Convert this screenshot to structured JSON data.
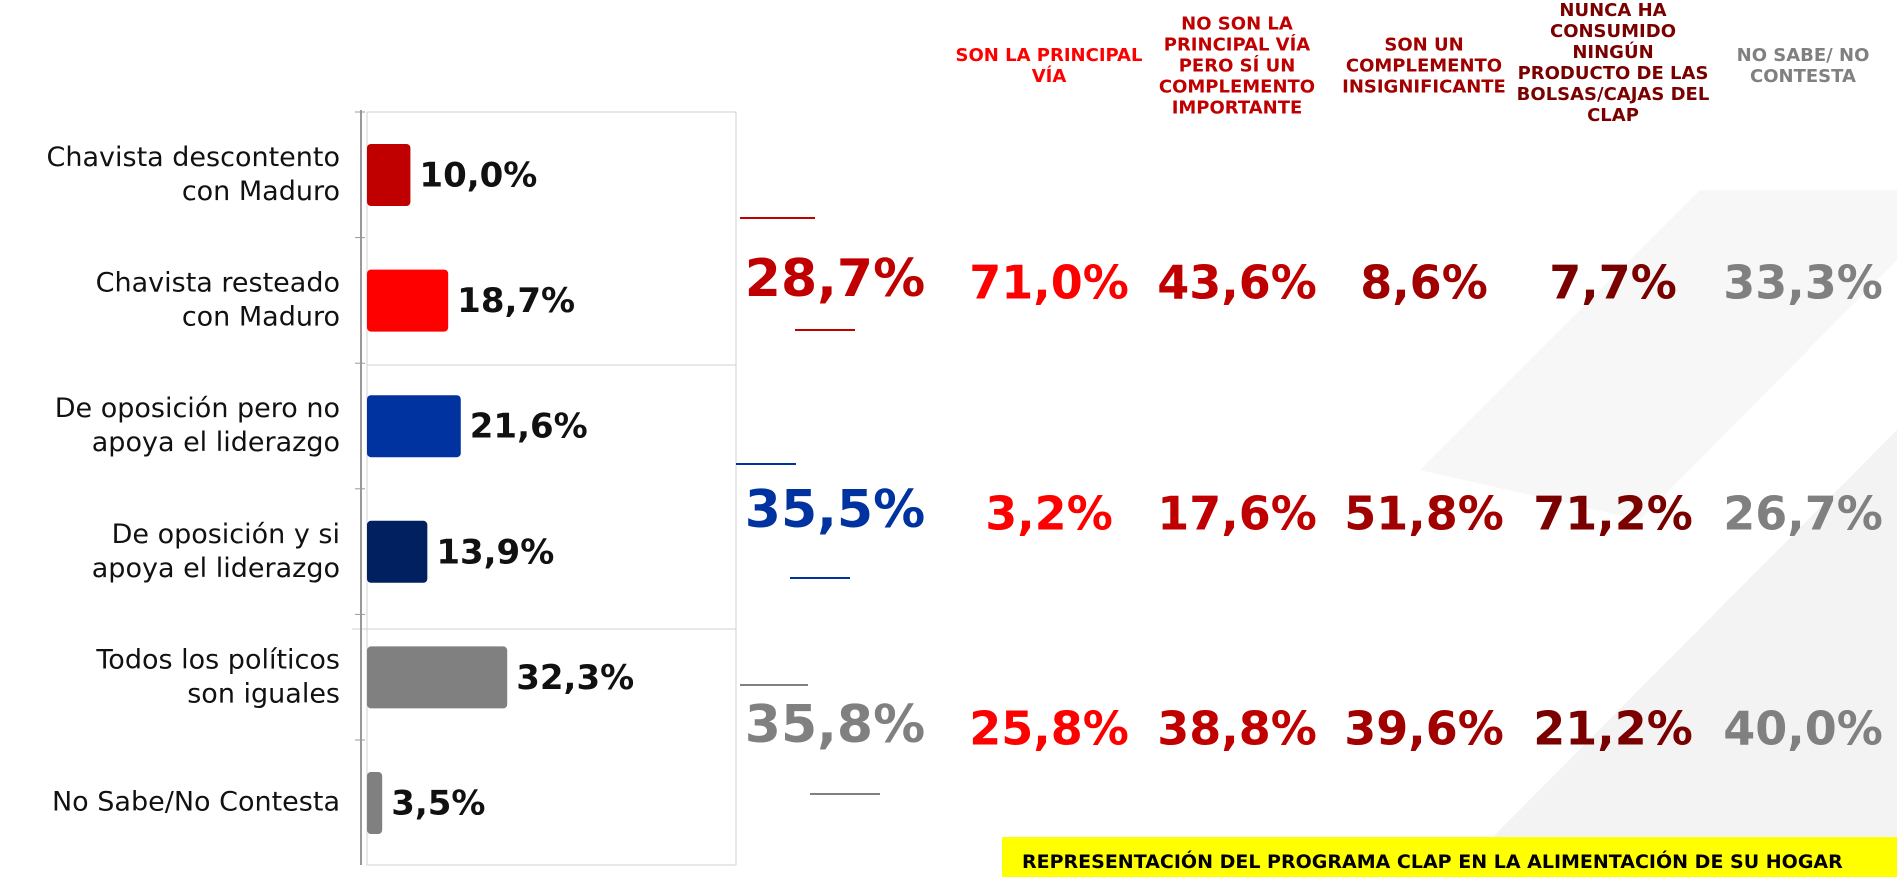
{
  "chart_data": {
    "type": "barh",
    "categories": [
      "Chavista descontento con Maduro",
      "Chavista resteado con Maduro",
      "De oposición pero no apoya el liderazgo",
      "De oposición y si apoya el liderazgo",
      "Todos los políticos son iguales",
      "No Sabe/No Contesta"
    ],
    "values": [
      10.0,
      18.7,
      21.6,
      13.9,
      32.3,
      3.5
    ],
    "value_labels": [
      "10,0%",
      "18,7%",
      "21,6%",
      "13,9%",
      "32,3%",
      "3,5%"
    ],
    "colors": [
      "#c00000",
      "#ff0000",
      "#0033a0",
      "#002060",
      "#808080",
      "#808080"
    ],
    "xlim": [
      0,
      85
    ]
  },
  "table": {
    "columns": [
      "SON LA PRINCIPAL VÍA",
      "NO SON LA PRINCIPAL VÍA PERO SÍ UN COMPLEMENTO IMPORTANTE",
      "SON UN COMPLEMENTO INSIGNIFICANTE",
      "NUNCA HA CONSUMIDO NINGÚN PRODUCTO DE LAS BOLSAS/CAJAS DEL CLAP",
      "NO SABE/ NO CONTESTA"
    ],
    "column_colors": [
      "#ff0000",
      "#c00000",
      "#a00000",
      "#7a0000",
      "#808080"
    ],
    "rows": [
      {
        "total": "28,7%",
        "color": "#c00000",
        "cells": [
          "71,0%",
          "43,6%",
          "8,6%",
          "7,7%",
          "33,3%"
        ]
      },
      {
        "total": "35,5%",
        "color": "#0033a0",
        "cells": [
          "3,2%",
          "17,6%",
          "51,8%",
          "71,2%",
          "26,7%"
        ]
      },
      {
        "total": "35,8%",
        "color": "#808080",
        "cells": [
          "25,8%",
          "38,8%",
          "39,6%",
          "21,2%",
          "40,0%"
        ]
      }
    ]
  },
  "banner": "REPRESENTACIÓN DEL PROGRAMA CLAP EN LA ALIMENTACIÓN DE SU HOGAR"
}
